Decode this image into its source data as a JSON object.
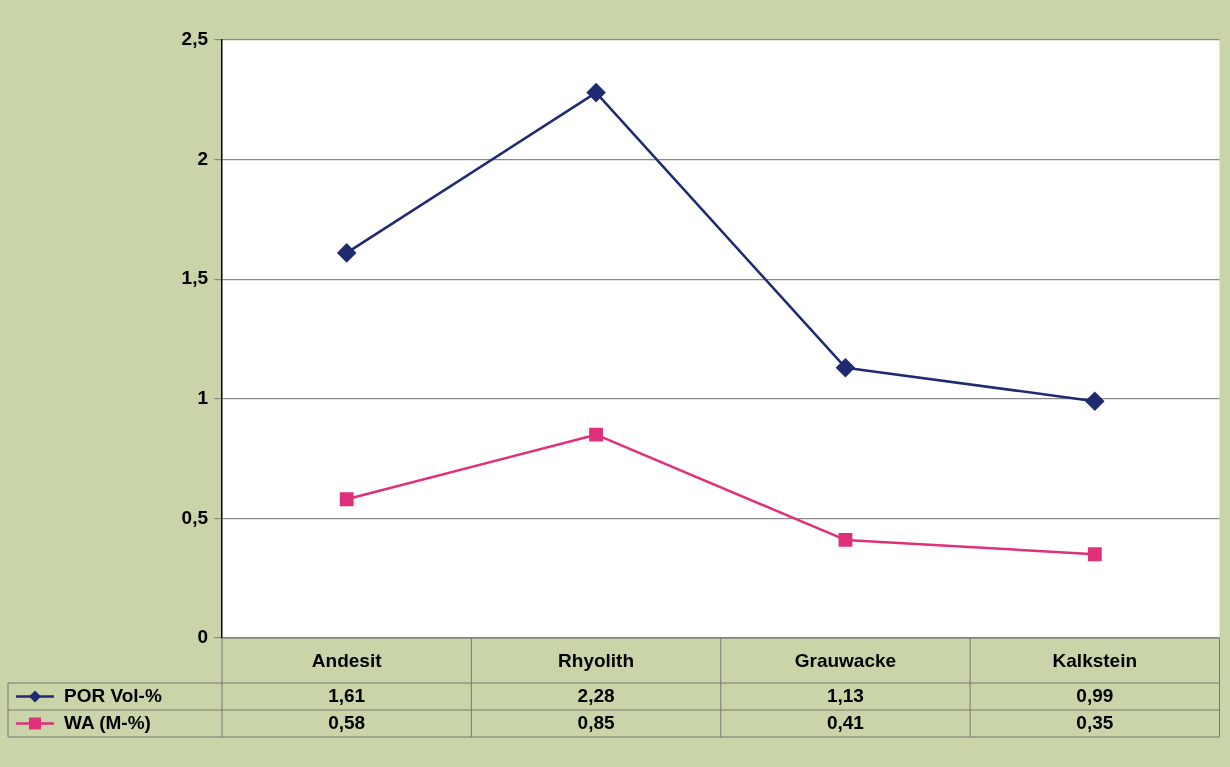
{
  "chart_data": {
    "type": "line",
    "categories": [
      "Andesit",
      "Rhyolith",
      "Grauwacke",
      "Kalkstein"
    ],
    "series": [
      {
        "name": "POR Vol-%",
        "color": "#1f2a70",
        "marker": "diamond",
        "values": [
          1.61,
          2.28,
          1.13,
          0.99
        ],
        "value_labels": [
          "1,61",
          "2,28",
          "1,13",
          "0,99"
        ]
      },
      {
        "name": "WA (M-%)",
        "color": "#e0307a",
        "marker": "square",
        "values": [
          0.58,
          0.85,
          0.41,
          0.35
        ],
        "value_labels": [
          "0,58",
          "0,85",
          "0,41",
          "0,35"
        ]
      }
    ],
    "ylim": [
      0,
      2.5
    ],
    "yticks": [
      0,
      {
        "value": 0.5,
        "label": "0,5"
      },
      1,
      {
        "value": 1.5,
        "label": "1,5"
      },
      2,
      {
        "value": 2.5,
        "label": "2,5"
      }
    ],
    "grid": "y",
    "legend": "bottom left",
    "line_style": "solid"
  }
}
